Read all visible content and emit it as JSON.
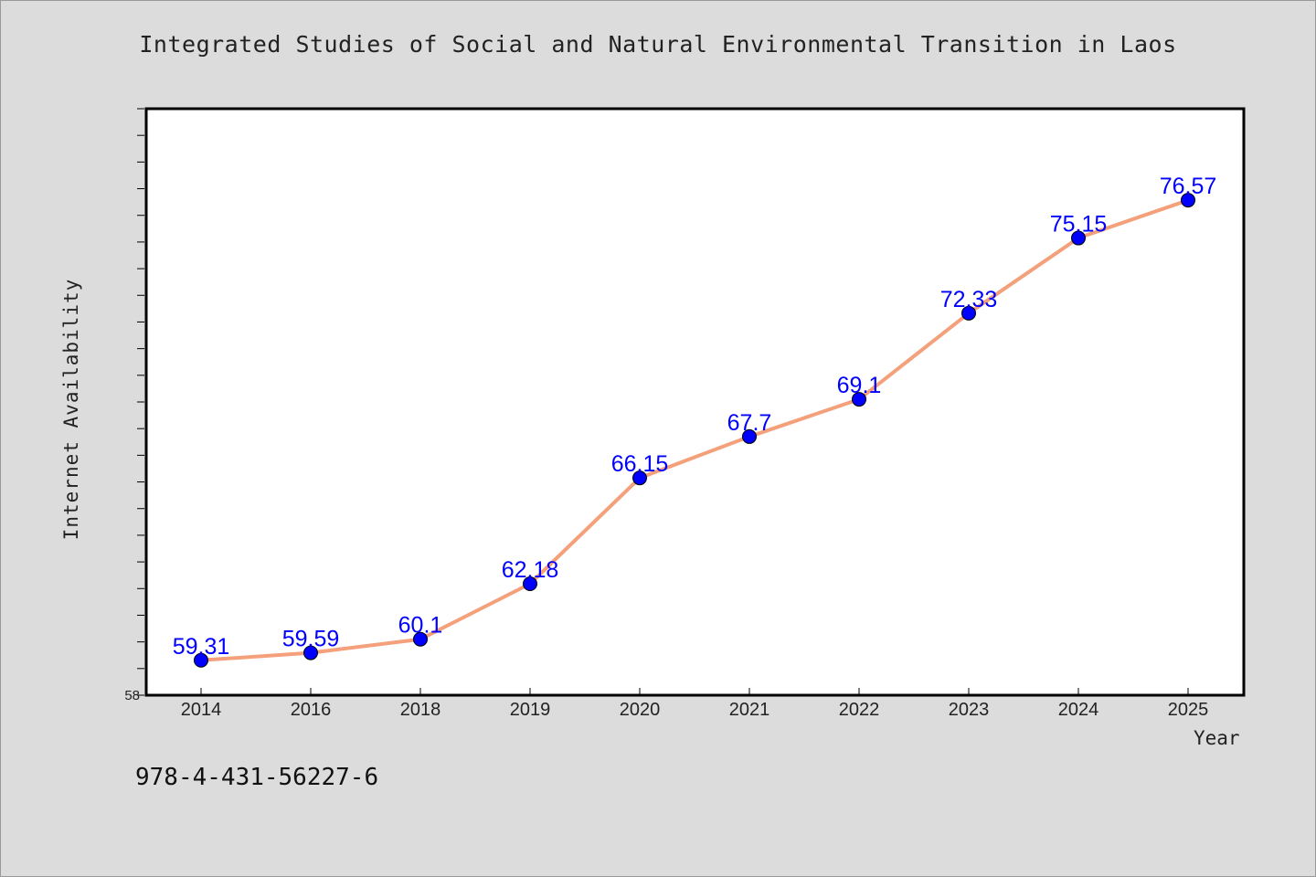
{
  "chart_data": {
    "type": "line",
    "title": "Integrated Studies of Social and Natural Environmental Transition in Laos",
    "xlabel": "Year",
    "ylabel": "Internet Availability",
    "categories": [
      "2014",
      "2016",
      "2018",
      "2019",
      "2020",
      "2021",
      "2022",
      "2023",
      "2024",
      "2025"
    ],
    "series": [
      {
        "values": [
          59.31,
          59.59,
          60.1,
          62.18,
          66.15,
          67.7,
          69.1,
          72.33,
          75.15,
          76.57
        ],
        "data_labels": [
          "59.31",
          "59.59",
          "60.1",
          "62.18",
          "66.15",
          "67.7",
          "69.1",
          "72.33",
          "75.15",
          "76.57"
        ]
      }
    ],
    "y_min_label": "58",
    "ylim": [
      58,
      80
    ],
    "grid": false,
    "legend": "none",
    "colors": {
      "line": "#f4a07a",
      "marker": "#0000ff",
      "label": "#0000ff",
      "background": "#dcdcdc",
      "plot_background": "#ffffff"
    }
  },
  "footer": {
    "isbn": "978-4-431-56227-6"
  }
}
